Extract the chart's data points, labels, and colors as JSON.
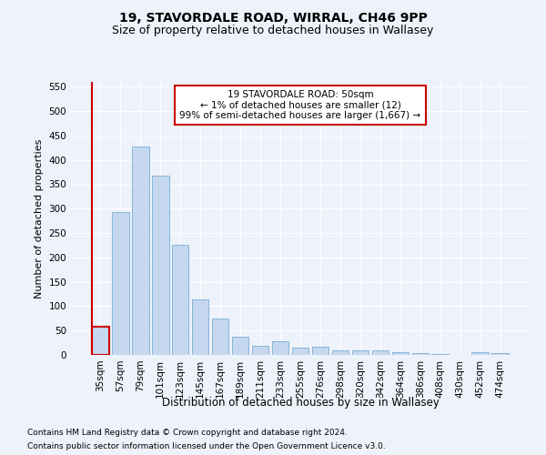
{
  "title1": "19, STAVORDALE ROAD, WIRRAL, CH46 9PP",
  "title2": "Size of property relative to detached houses in Wallasey",
  "xlabel": "Distribution of detached houses by size in Wallasey",
  "ylabel": "Number of detached properties",
  "categories": [
    "35sqm",
    "57sqm",
    "79sqm",
    "101sqm",
    "123sqm",
    "145sqm",
    "167sqm",
    "189sqm",
    "211sqm",
    "233sqm",
    "255sqm",
    "276sqm",
    "298sqm",
    "320sqm",
    "342sqm",
    "364sqm",
    "386sqm",
    "408sqm",
    "430sqm",
    "452sqm",
    "474sqm"
  ],
  "values": [
    57,
    293,
    428,
    367,
    225,
    113,
    75,
    38,
    18,
    28,
    15,
    16,
    10,
    10,
    9,
    6,
    4,
    1,
    0,
    6,
    4
  ],
  "bar_color": "#c5d8f0",
  "bar_edge_color": "#7aafd4",
  "highlight_bar_index": 0,
  "highlight_color": "#cc0000",
  "annotation_text": "19 STAVORDALE ROAD: 50sqm\n← 1% of detached houses are smaller (12)\n99% of semi-detached houses are larger (1,667) →",
  "annotation_box_color": "#ffffff",
  "annotation_box_edge": "#cc0000",
  "ylim": [
    0,
    560
  ],
  "yticks": [
    0,
    50,
    100,
    150,
    200,
    250,
    300,
    350,
    400,
    450,
    500,
    550
  ],
  "footer1": "Contains HM Land Registry data © Crown copyright and database right 2024.",
  "footer2": "Contains public sector information licensed under the Open Government Licence v3.0.",
  "background_color": "#eef2fb",
  "grid_color": "#ffffff",
  "title1_fontsize": 10,
  "title2_fontsize": 9,
  "xlabel_fontsize": 8.5,
  "ylabel_fontsize": 8,
  "tick_fontsize": 7.5,
  "annotation_fontsize": 7.5,
  "footer_fontsize": 6.5
}
